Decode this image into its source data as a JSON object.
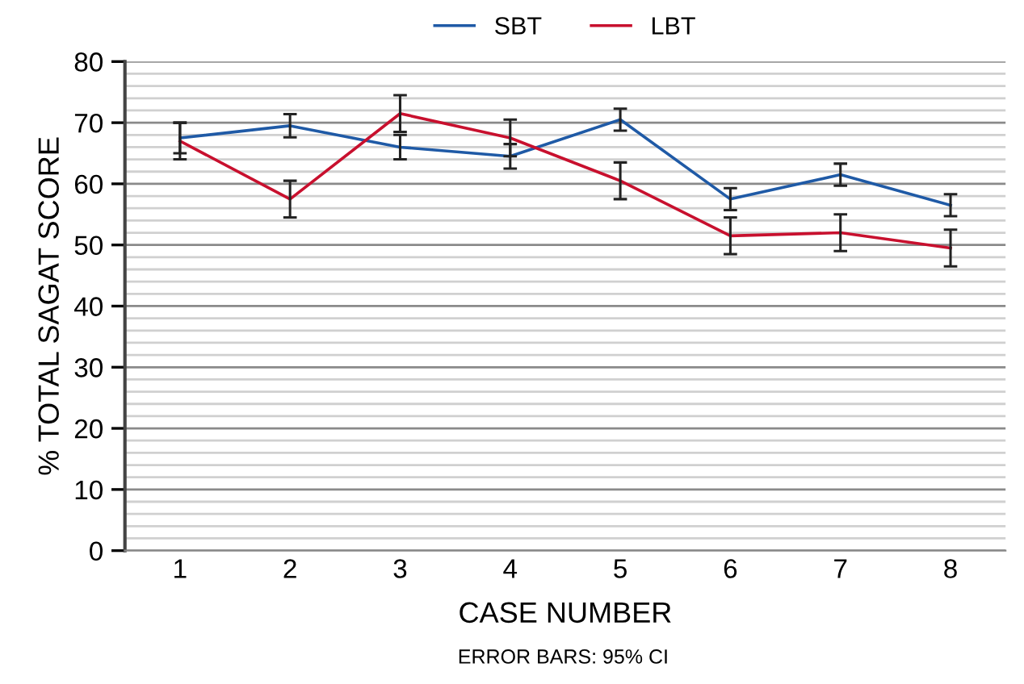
{
  "chart_data": {
    "type": "line",
    "xlabel": "CASE NUMBER",
    "ylabel": "% TOTAL SAGAT SCORE",
    "annotations": [
      "ERROR BARS: 95% CI"
    ],
    "categories": [
      "1",
      "2",
      "3",
      "4",
      "5",
      "6",
      "7",
      "8"
    ],
    "series": [
      {
        "name": "SBT",
        "color": "#1f5aa6",
        "values": [
          67.5,
          69.5,
          66,
          64.5,
          70.5,
          57.5,
          61.5,
          56.5
        ],
        "errors": [
          2.5,
          1.9,
          2,
          2,
          1.8,
          1.8,
          1.8,
          1.8
        ]
      },
      {
        "name": "LBT",
        "color": "#c8102e",
        "values": [
          67,
          57.5,
          71.5,
          67.5,
          60.5,
          51.5,
          52,
          49.5
        ],
        "errors": [
          3,
          3,
          3,
          3,
          3,
          3,
          3,
          3
        ]
      }
    ],
    "ylim": [
      0,
      80
    ],
    "yticks": [
      0,
      {
        "value": 2,
        "label": null
      },
      {
        "value": 4,
        "label": null
      },
      {
        "value": 6,
        "label": null
      },
      {
        "value": 8,
        "label": null
      },
      10,
      {
        "value": 12,
        "label": null
      },
      {
        "value": 14,
        "label": null
      },
      {
        "value": 16,
        "label": null
      },
      {
        "value": 18,
        "label": null
      },
      20,
      {
        "value": 22,
        "label": null
      },
      {
        "value": 24,
        "label": null
      },
      {
        "value": 26,
        "label": null
      },
      {
        "value": 28,
        "label": null
      },
      30,
      {
        "value": 32,
        "label": null
      },
      {
        "value": 34,
        "label": null
      },
      {
        "value": 36,
        "label": null
      },
      {
        "value": 38,
        "label": null
      },
      40,
      {
        "value": 42,
        "label": null
      },
      {
        "value": 44,
        "label": null
      },
      {
        "value": 46,
        "label": null
      },
      {
        "value": 48,
        "label": null
      },
      50,
      {
        "value": 52,
        "label": null
      },
      {
        "value": 54,
        "label": null
      },
      {
        "value": 56,
        "label": null
      },
      {
        "value": 58,
        "label": null
      },
      60,
      {
        "value": 62,
        "label": null
      },
      {
        "value": 64,
        "label": null
      },
      {
        "value": 66,
        "label": null
      },
      {
        "value": 68,
        "label": null
      },
      70,
      {
        "value": 72,
        "label": null
      },
      {
        "value": 74,
        "label": null
      },
      {
        "value": 76,
        "label": null
      },
      {
        "value": 78,
        "label": null
      },
      80
    ],
    "grid": "y",
    "legend": "top",
    "marker": "none",
    "line_style": "solid"
  }
}
